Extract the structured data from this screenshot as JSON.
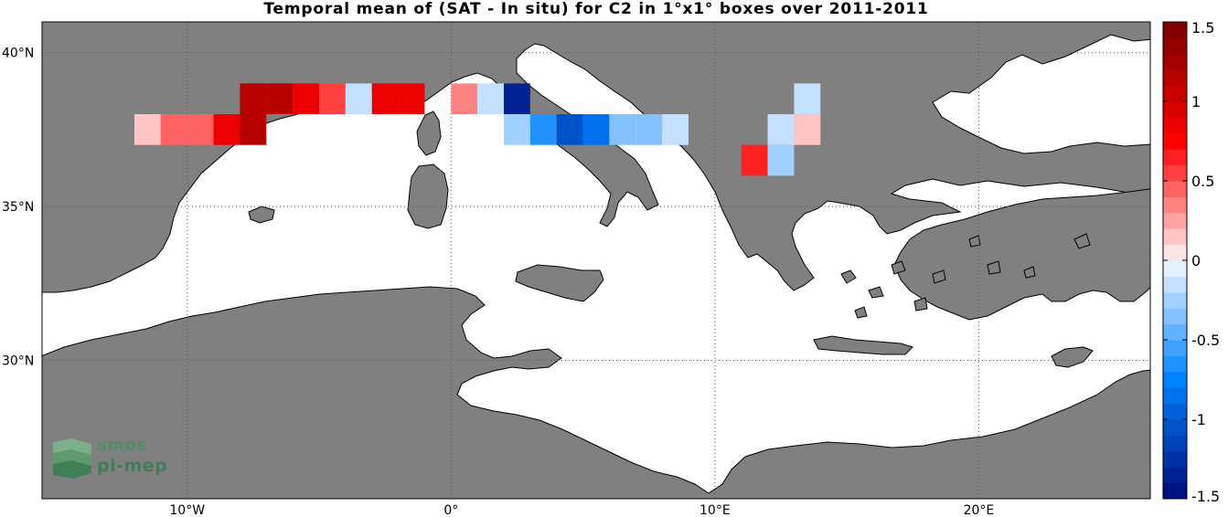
{
  "title": "Temporal mean of (SAT - In situ) for C2 in 1°x1° boxes over 2011-2011",
  "map": {
    "lon_range": [
      -15.5,
      26.5
    ],
    "lat_range": [
      25.5,
      41
    ],
    "land_color": "#808080",
    "sea_color": "#ffffff",
    "lat_ticks": [
      {
        "value": 40,
        "text": "40°N"
      },
      {
        "value": 35,
        "text": "35°N"
      },
      {
        "value": 30,
        "text": "30°N"
      }
    ],
    "lon_ticks": [
      {
        "value": -10,
        "text": "10°W"
      },
      {
        "value": 0,
        "text": "0°"
      },
      {
        "value": 10,
        "text": "10°E"
      },
      {
        "value": 20,
        "text": "20°E"
      }
    ],
    "grid": true
  },
  "colorbar": {
    "min": -1.5,
    "max": 1.5,
    "ticks": [
      {
        "value": 1.5,
        "text": "1.5"
      },
      {
        "value": 1,
        "text": "1"
      },
      {
        "value": 0.5,
        "text": "0.5"
      },
      {
        "value": 0,
        "text": "0"
      },
      {
        "value": -0.5,
        "text": "-0.5"
      },
      {
        "value": -1,
        "text": "-1"
      },
      {
        "value": -1.5,
        "text": "-1.5"
      }
    ]
  },
  "chart_data": {
    "type": "heatmap",
    "title": "Temporal mean of (SAT - In situ) for C2 in 1°x1° boxes over 2011-2011",
    "cell_size_deg": 1,
    "cells": [
      {
        "lon": -12,
        "lat": 37,
        "value": 0.15
      },
      {
        "lon": -11,
        "lat": 37,
        "value": 0.4
      },
      {
        "lon": -10,
        "lat": 37,
        "value": 0.45
      },
      {
        "lon": -9,
        "lat": 37,
        "value": 0.85
      },
      {
        "lon": -8,
        "lat": 37,
        "value": 1.1
      },
      {
        "lon": -8,
        "lat": 38,
        "value": 1.1
      },
      {
        "lon": -7,
        "lat": 38,
        "value": 1.1
      },
      {
        "lon": -6,
        "lat": 38,
        "value": 0.9
      },
      {
        "lon": -5,
        "lat": 38,
        "value": 0.55
      },
      {
        "lon": -4,
        "lat": 38,
        "value": -0.1
      },
      {
        "lon": -3,
        "lat": 38,
        "value": 0.9
      },
      {
        "lon": -2,
        "lat": 38,
        "value": 0.9
      },
      {
        "lon": 0,
        "lat": 38,
        "value": 0.35
      },
      {
        "lon": 1,
        "lat": 38,
        "value": -0.15
      },
      {
        "lon": 2,
        "lat": 38,
        "value": -1.4
      },
      {
        "lon": 2,
        "lat": 37,
        "value": -0.25
      },
      {
        "lon": 3,
        "lat": 37,
        "value": -0.65
      },
      {
        "lon": 4,
        "lat": 37,
        "value": -1.05
      },
      {
        "lon": 5,
        "lat": 37,
        "value": -0.85
      },
      {
        "lon": 6,
        "lat": 37,
        "value": -0.35
      },
      {
        "lon": 7,
        "lat": 37,
        "value": -0.35
      },
      {
        "lon": 8,
        "lat": 37,
        "value": -0.1
      },
      {
        "lon": 11,
        "lat": 36,
        "value": 0.6
      },
      {
        "lon": 12,
        "lat": 36,
        "value": -0.25
      },
      {
        "lon": 12,
        "lat": 37,
        "value": -0.1
      },
      {
        "lon": 13,
        "lat": 37,
        "value": 0.15
      },
      {
        "lon": 13,
        "lat": 38,
        "value": -0.1
      }
    ],
    "colorbar_range": [
      -1.5,
      1.5
    ]
  },
  "logo": {
    "line1": "smos",
    "line2": "pi-mep"
  }
}
